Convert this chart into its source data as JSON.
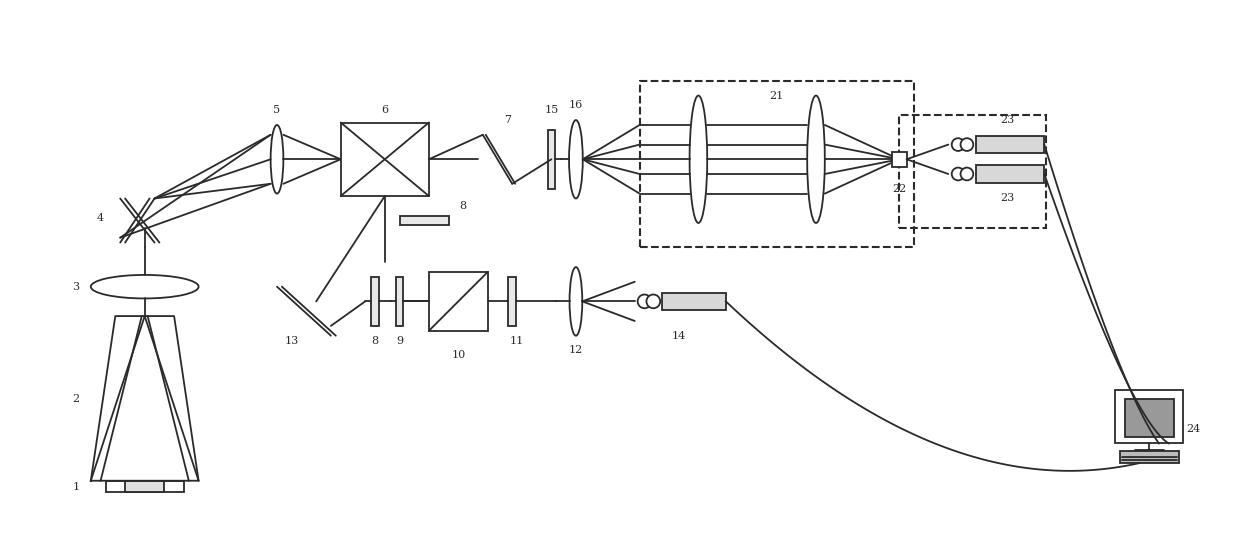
{
  "bg": "#ffffff",
  "lc": "#2a2a2a",
  "lw": 1.3,
  "fw": 12.4,
  "fh": 5.42,
  "dpi": 100
}
